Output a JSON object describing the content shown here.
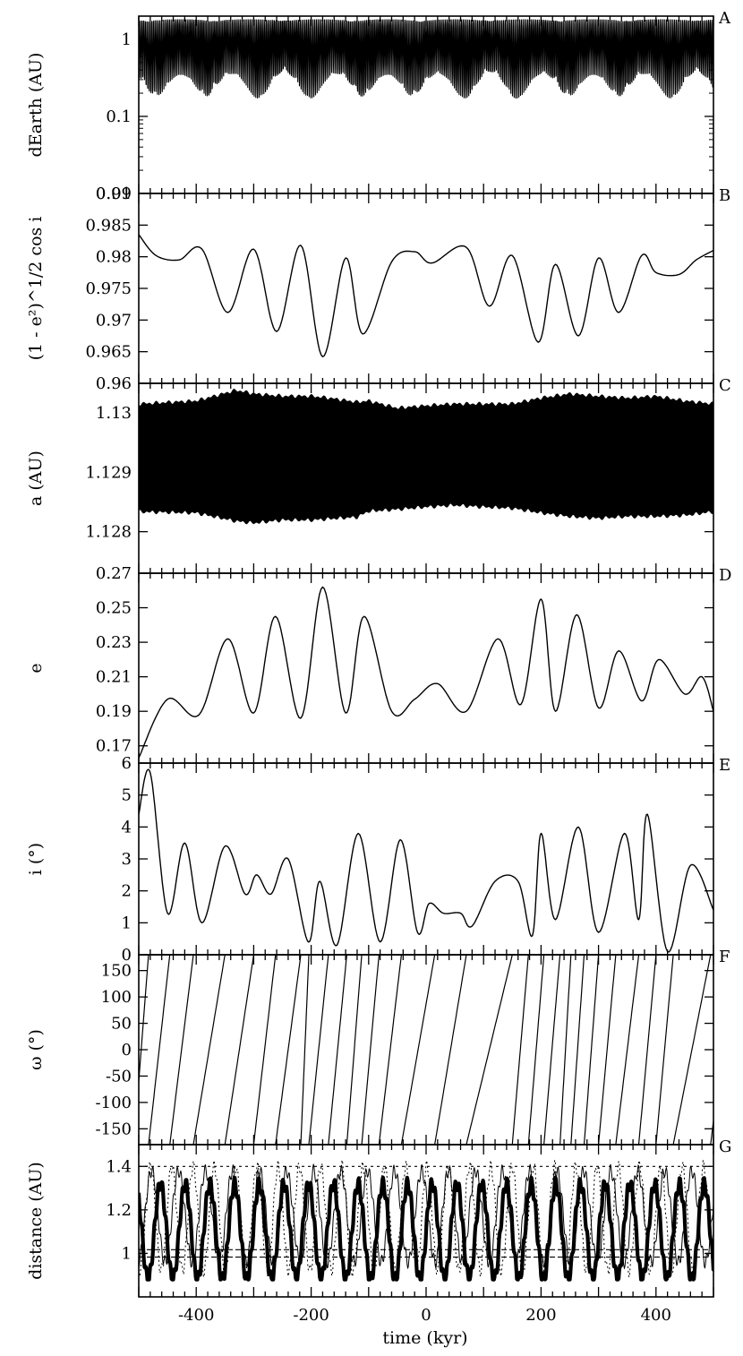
{
  "chart_data": [
    {
      "panel": "A",
      "type": "line",
      "ylabel": "dEarth (AU)",
      "yscale": "log",
      "ylim": [
        0.01,
        2.0
      ],
      "yticks": [
        0.01,
        0.1,
        1
      ],
      "ytick_labels": [
        "0.01",
        "0.1",
        "1"
      ],
      "reference_line": 0.01,
      "series": [
        {
          "kind": "dense-oscillation",
          "envelope_low": [
            0.17,
            0.35
          ],
          "envelope_high": 1.8,
          "period_kyr": 20.5
        }
      ]
    },
    {
      "panel": "B",
      "type": "line",
      "ylabel": "(1 - e²)^1/2 cos i",
      "ylim": [
        0.96,
        0.99
      ],
      "yticks": [
        0.96,
        0.965,
        0.97,
        0.975,
        0.98,
        0.985,
        0.99
      ],
      "ytick_labels": [
        "0.96",
        "0.965",
        "0.97",
        "0.975",
        "0.98",
        "0.985",
        "0.99"
      ],
      "series": [
        {
          "x": [
            -500,
            -470,
            -430,
            -390,
            -345,
            -300,
            -260,
            -218,
            -180,
            -140,
            -110,
            -60,
            -20,
            10,
            70,
            110,
            150,
            195,
            225,
            265,
            300,
            335,
            375,
            400,
            440,
            470,
            500
          ],
          "y": [
            0.9835,
            0.9802,
            0.9795,
            0.9812,
            0.9712,
            0.9812,
            0.9682,
            0.9818,
            0.9642,
            0.9798,
            0.9678,
            0.9792,
            0.9808,
            0.979,
            0.9815,
            0.9722,
            0.9802,
            0.9665,
            0.9788,
            0.9675,
            0.9798,
            0.9712,
            0.9802,
            0.9775,
            0.9772,
            0.9795,
            0.981
          ]
        }
      ]
    },
    {
      "panel": "C",
      "type": "line",
      "ylabel": "a (AU)",
      "ylim": [
        1.1273,
        1.1305
      ],
      "yticks": [
        1.128,
        1.129,
        1.13
      ],
      "ytick_labels": [
        "1.128",
        "1.129",
        "1.13"
      ],
      "series": [
        {
          "kind": "dense-oscillation",
          "x": [
            -500,
            -400,
            -330,
            -300,
            -250,
            -200,
            -170,
            -120,
            -100,
            -50,
            0,
            50,
            100,
            150,
            200,
            250,
            300,
            350,
            400,
            450,
            500
          ],
          "upper": [
            1.13015,
            1.1302,
            1.13038,
            1.13032,
            1.13028,
            1.13028,
            1.13025,
            1.13018,
            1.1302,
            1.13008,
            1.13012,
            1.13015,
            1.13015,
            1.13015,
            1.13025,
            1.13032,
            1.13028,
            1.13025,
            1.13028,
            1.1302,
            1.13015
          ],
          "lower": [
            1.12834,
            1.12832,
            1.12818,
            1.12815,
            1.1282,
            1.1282,
            1.12822,
            1.12825,
            1.12835,
            1.12838,
            1.12842,
            1.12845,
            1.12842,
            1.1284,
            1.12832,
            1.12826,
            1.12823,
            1.12826,
            1.12826,
            1.12828,
            1.12834
          ]
        }
      ]
    },
    {
      "panel": "D",
      "type": "line",
      "ylabel": "e",
      "ylim": [
        0.16,
        0.27
      ],
      "yticks": [
        0.17,
        0.19,
        0.21,
        0.23,
        0.25,
        0.27
      ],
      "ytick_labels": [
        "0.17",
        "0.19",
        "0.21",
        "0.23",
        "0.25",
        "0.27"
      ],
      "series": [
        {
          "x": [
            -500,
            -450,
            -395,
            -345,
            -300,
            -262,
            -218,
            -180,
            -140,
            -108,
            -60,
            -20,
            20,
            70,
            125,
            165,
            200,
            225,
            262,
            300,
            335,
            375,
            405,
            450,
            480,
            500
          ],
          "y": [
            0.163,
            0.197,
            0.188,
            0.232,
            0.189,
            0.245,
            0.186,
            0.262,
            0.189,
            0.245,
            0.19,
            0.197,
            0.206,
            0.19,
            0.232,
            0.194,
            0.255,
            0.19,
            0.246,
            0.192,
            0.225,
            0.196,
            0.22,
            0.2,
            0.21,
            0.19
          ]
        }
      ]
    },
    {
      "panel": "E",
      "type": "line",
      "ylabel": "i (°)",
      "ylim": [
        0,
        6
      ],
      "yticks": [
        0,
        1,
        2,
        3,
        4,
        5,
        6
      ],
      "ytick_labels": [
        "0",
        "1",
        "2",
        "3",
        "4",
        "5",
        "6"
      ],
      "series": [
        {
          "x": [
            -500,
            -480,
            -450,
            -420,
            -390,
            -350,
            -315,
            -295,
            -270,
            -240,
            -205,
            -185,
            -155,
            -118,
            -80,
            -45,
            -15,
            5,
            30,
            60,
            80,
            120,
            160,
            185,
            200,
            225,
            265,
            300,
            345,
            370,
            385,
            420,
            460,
            500
          ],
          "y": [
            4.4,
            5.7,
            1.3,
            3.5,
            1.0,
            3.4,
            1.9,
            2.5,
            1.9,
            3.0,
            0.4,
            2.3,
            0.3,
            3.8,
            0.4,
            3.6,
            0.7,
            1.6,
            1.3,
            1.3,
            0.9,
            2.3,
            2.3,
            0.6,
            3.8,
            1.1,
            4.0,
            0.7,
            3.8,
            1.1,
            4.4,
            0.1,
            2.8,
            1.4
          ]
        }
      ]
    },
    {
      "panel": "F",
      "type": "line",
      "ylabel": "ω (°)",
      "ylim": [
        -180,
        180
      ],
      "yticks": [
        -150,
        -100,
        -50,
        0,
        50,
        100,
        150
      ],
      "ytick_labels": [
        "-150",
        "-100",
        "-50",
        "0",
        "50",
        "100",
        "150"
      ],
      "series": [
        {
          "kind": "wrapping-sawtooth",
          "wrap_crossings_kyr": [
            -483,
            -446,
            -405,
            -350,
            -300,
            -262,
            -218,
            -204,
            -170,
            -138,
            -112,
            -82,
            -43,
            15,
            70,
            150,
            178,
            205,
            233,
            252,
            275,
            300,
            330,
            370,
            400,
            430,
            495
          ],
          "wraps_x": [
            -483,
            -446,
            -405,
            -350,
            -300,
            -262,
            -218,
            -204,
            -170,
            -138,
            -112,
            -82,
            -43,
            15,
            70,
            150,
            178,
            205,
            233,
            252,
            275,
            300,
            330,
            370,
            400,
            430,
            495
          ]
        }
      ]
    },
    {
      "panel": "G",
      "type": "line",
      "ylabel": "distance (AU)",
      "ylim": [
        0.8,
        1.5
      ],
      "yticks": [
        1,
        1.2,
        1.4
      ],
      "ytick_labels": [
        "1",
        "1.2",
        "1.4"
      ],
      "xlabel": "time (kyr)",
      "xlim": [
        -500,
        500
      ],
      "xticks": [
        -400,
        -200,
        0,
        200,
        400
      ],
      "xtick_labels": [
        "-400",
        "-200",
        "0",
        "200",
        "400"
      ],
      "reference_lines": [
        0.983,
        1.017,
        1.4
      ],
      "series": [
        {
          "style": "thick-solid",
          "center": 1.1,
          "amplitude": 0.22,
          "period_kyr": 43,
          "min_value": 0.88,
          "max_value": 1.42
        },
        {
          "style": "dotted",
          "center": 1.16,
          "amplitude": 0.24,
          "period_kyr": 37
        },
        {
          "style": "thin-solid",
          "center": 1.17,
          "amplitude": 0.21,
          "period_kyr": 47
        }
      ]
    }
  ],
  "panel_letters": [
    "A",
    "B",
    "C",
    "D",
    "E",
    "F",
    "G"
  ],
  "labels": {
    "A": "dEarth (AU)",
    "B": "(1 - e²)^1/2 cos i",
    "C": "a (AU)",
    "D": "e",
    "E": "i (°)",
    "F": "ω (°)",
    "G": "distance (AU)",
    "x": "time (kyr)"
  }
}
